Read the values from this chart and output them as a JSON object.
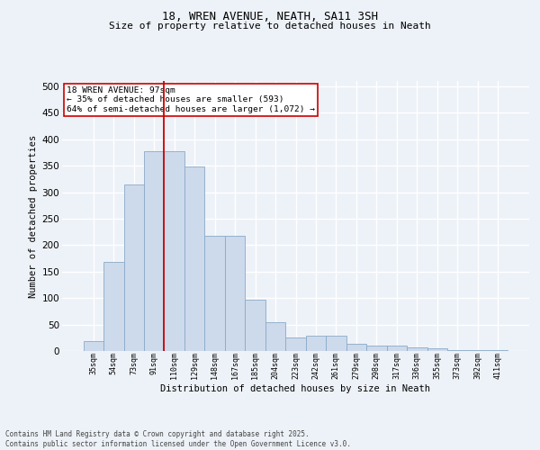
{
  "title1": "18, WREN AVENUE, NEATH, SA11 3SH",
  "title2": "Size of property relative to detached houses in Neath",
  "xlabel": "Distribution of detached houses by size in Neath",
  "ylabel": "Number of detached properties",
  "categories": [
    "35sqm",
    "54sqm",
    "73sqm",
    "91sqm",
    "110sqm",
    "129sqm",
    "148sqm",
    "167sqm",
    "185sqm",
    "204sqm",
    "223sqm",
    "242sqm",
    "261sqm",
    "279sqm",
    "298sqm",
    "317sqm",
    "336sqm",
    "355sqm",
    "373sqm",
    "392sqm",
    "411sqm"
  ],
  "values": [
    18,
    168,
    315,
    378,
    378,
    348,
    218,
    218,
    97,
    55,
    25,
    29,
    29,
    13,
    10,
    10,
    7,
    5,
    2,
    1,
    1
  ],
  "bar_color": "#cddaeb",
  "bar_edge_color": "#8aaac8",
  "background_color": "#edf2f8",
  "grid_color": "#ffffff",
  "red_line_x": 3.5,
  "annotation_text": "18 WREN AVENUE: 97sqm\n← 35% of detached houses are smaller (593)\n64% of semi-detached houses are larger (1,072) →",
  "annotation_box_facecolor": "#ffffff",
  "annotation_box_edgecolor": "#cc0000",
  "ylim": [
    0,
    510
  ],
  "yticks": [
    0,
    50,
    100,
    150,
    200,
    250,
    300,
    350,
    400,
    450,
    500
  ],
  "footer": "Contains HM Land Registry data © Crown copyright and database right 2025.\nContains public sector information licensed under the Open Government Licence v3.0.",
  "fig_bg": "#edf2f8"
}
